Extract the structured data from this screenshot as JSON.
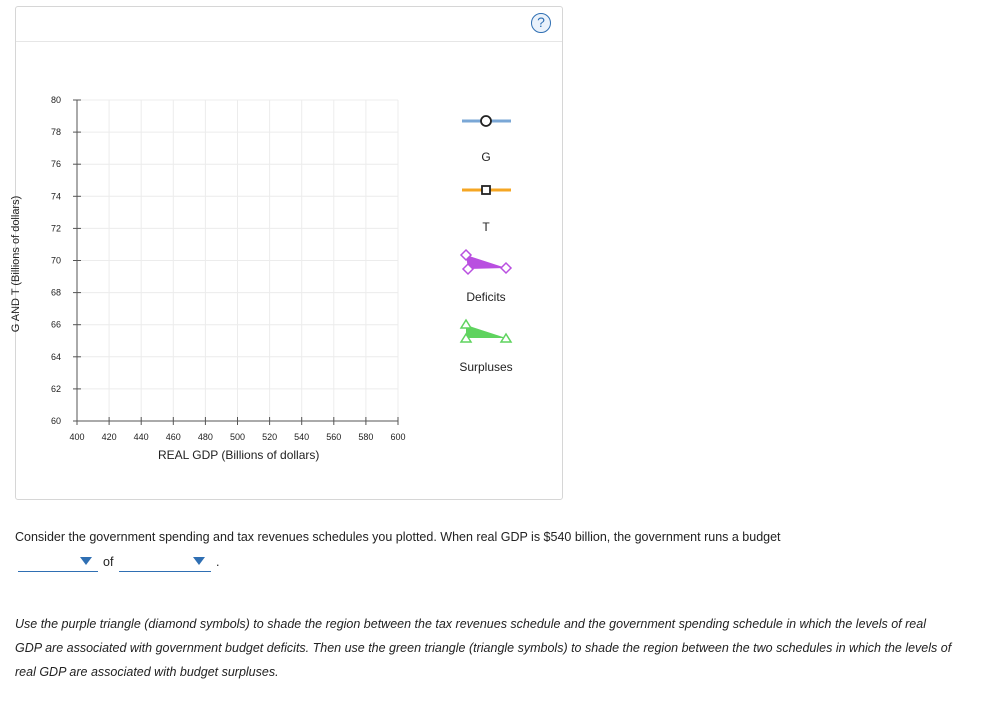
{
  "panel": {
    "help_label": "?"
  },
  "graph": {
    "ylabel": "G AND T (Billions of dollars)",
    "xlabel": "REAL GDP (Billions of dollars)",
    "y_ticks": [
      "80",
      "78",
      "76",
      "74",
      "72",
      "70",
      "68",
      "66",
      "64",
      "62",
      "60"
    ],
    "x_ticks": [
      "400",
      "420",
      "440",
      "460",
      "480",
      "500",
      "520",
      "540",
      "560",
      "580",
      "600"
    ],
    "xlim": [
      400,
      600
    ],
    "ylim": [
      60,
      80
    ]
  },
  "legend": {
    "items": [
      {
        "label": "G",
        "icon": "circle-line-icon",
        "color": "#7aa7d6"
      },
      {
        "label": "T",
        "icon": "square-line-icon",
        "color": "#f5a623"
      },
      {
        "label": "Deficits",
        "icon": "diamond-triangle-icon",
        "color": "#b94fe0"
      },
      {
        "label": "Surpluses",
        "icon": "triangle-triangle-icon",
        "color": "#5fd35f"
      }
    ]
  },
  "question": {
    "text": "Consider the government spending and tax revenues schedules you plotted. When real GDP is $540 billion, the government runs a budget",
    "of_text": "of",
    "period": ".",
    "dropdown1_value": "",
    "dropdown2_value": ""
  },
  "instructions": {
    "text": "Use the purple triangle (diamond symbols) to shade the region between the tax revenues schedule and the government spending schedule in which the levels of real GDP are associated with government budget deficits. Then use the green triangle (triangle symbols) to shade the region between the two schedules in which the levels of real GDP are associated with budget surpluses."
  }
}
